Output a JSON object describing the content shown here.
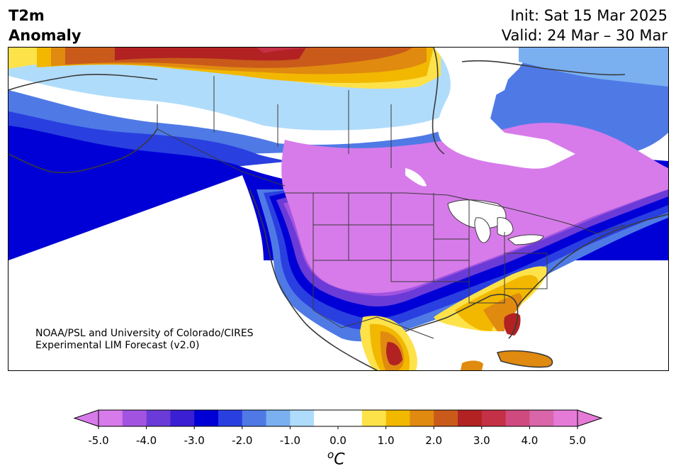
{
  "title": {
    "left_line1": "T2m",
    "left_line2": "Anomaly",
    "init": "Init: Sat 15 Mar 2025",
    "valid": "Valid: 24 Mar – 30 Mar"
  },
  "credit": {
    "line1": "NOAA/PSL and University of Colorado/CIRES",
    "line2": "Experimental LIM Forecast (v2.0)"
  },
  "colorbar": {
    "unit_base": "C",
    "unit_sup": "o",
    "ticks": [
      "-5.0",
      "-4.0",
      "-3.0",
      "-2.0",
      "-1.0",
      "0.0",
      "1.0",
      "2.0",
      "3.0",
      "4.0",
      "5.0"
    ],
    "colors": [
      "#d77bea",
      "#a254e0",
      "#6b3bd8",
      "#3a1fd3",
      "#0000d6",
      "#2a3fe0",
      "#4f7ae6",
      "#7ab0f0",
      "#b0dcfb",
      "#ffffff",
      "#ffffff",
      "#fde24a",
      "#f2b800",
      "#e08a10",
      "#c95a1a",
      "#b22222",
      "#c43045",
      "#cf4a7e",
      "#d866a8",
      "#e57bd7"
    ]
  },
  "map": {
    "palette": {
      "cold5": "#d77bea",
      "cold4": "#a254e0",
      "cold3": "#0000d6",
      "cold2": "#2a3fe0",
      "cold1": "#4f7ae6",
      "cool": "#7ab0f0",
      "light": "#b0dcfb",
      "warm1": "#fde24a",
      "warm2": "#f2b800",
      "warm3": "#e08a10",
      "warm4": "#c95a1a",
      "hot": "#b22222",
      "hot2": "#c43045"
    }
  }
}
